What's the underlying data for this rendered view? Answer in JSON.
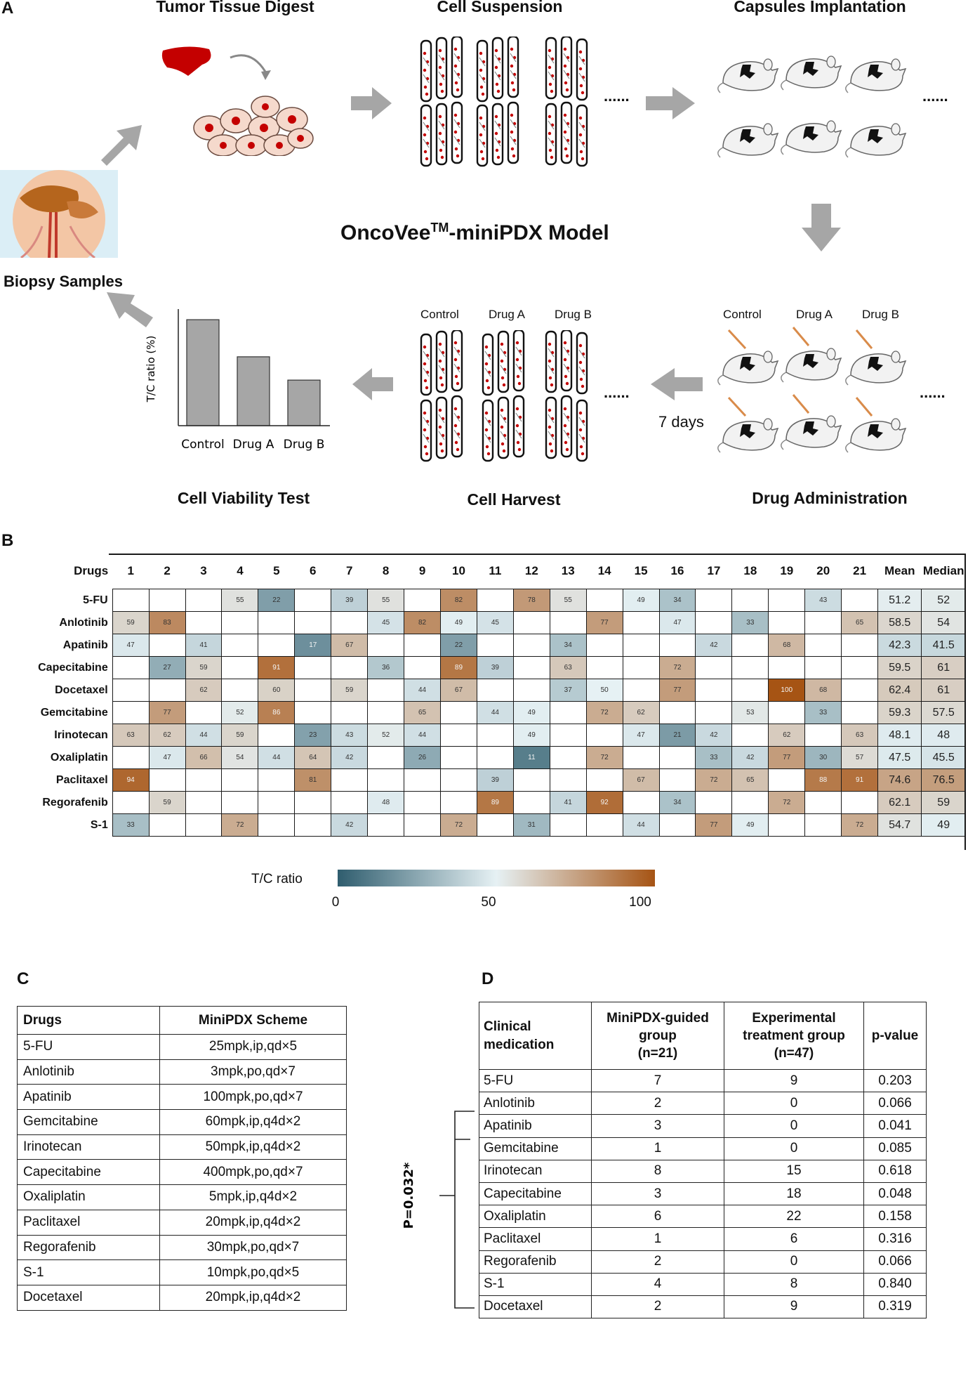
{
  "panelA": {
    "letter": "A",
    "model_title_main": "OncoVee",
    "model_title_sup": "TM",
    "model_title_rest": "-miniPDX Model",
    "steps": {
      "tumor_digest": "Tumor Tissue Digest",
      "cell_suspension": "Cell Suspension",
      "capsules": "Capsules Implantation",
      "biopsy": "Biopsy Samples",
      "viability": "Cell Viability  Test",
      "harvest": "Cell Harvest",
      "drug_admin": "Drug Administration"
    },
    "groups": [
      "Control",
      "Drug A",
      "Drug B"
    ],
    "dots": "......",
    "days": "7 days",
    "chart_data": {
      "type": "bar",
      "categories": [
        "Control",
        "Drug A",
        "Drug B"
      ],
      "values": [
        100,
        65,
        43
      ],
      "ylabel": "T/C ratio (%)",
      "ylim": [
        0,
        110
      ],
      "bar_color": "#a6a6a6"
    }
  },
  "panelB": {
    "letter": "B",
    "corner_label": "Drugs",
    "columns": [
      "1",
      "2",
      "3",
      "4",
      "5",
      "6",
      "7",
      "8",
      "9",
      "10",
      "11",
      "12",
      "13",
      "14",
      "15",
      "16",
      "17",
      "18",
      "19",
      "20",
      "21"
    ],
    "stat_headers": [
      "Mean",
      "Median"
    ],
    "rows": [
      {
        "drug": "5-FU",
        "cells": [
          null,
          null,
          null,
          55,
          22,
          null,
          39,
          55,
          null,
          82,
          null,
          78,
          55,
          null,
          49,
          34,
          null,
          null,
          null,
          43,
          null
        ],
        "mean": "51.2",
        "median": "52"
      },
      {
        "drug": "Anlotinib",
        "cells": [
          59,
          83,
          null,
          null,
          null,
          null,
          null,
          45,
          82,
          49,
          45,
          null,
          null,
          77,
          null,
          47,
          null,
          33,
          null,
          null,
          65
        ],
        "mean": "58.5",
        "median": "54"
      },
      {
        "drug": "Apatinib",
        "cells": [
          47,
          null,
          41,
          null,
          null,
          17,
          67,
          null,
          null,
          22,
          null,
          null,
          34,
          null,
          null,
          null,
          42,
          null,
          68,
          null,
          null
        ],
        "mean": "42.3",
        "median": "41.5"
      },
      {
        "drug": "Capecitabine",
        "cells": [
          null,
          27,
          59,
          null,
          91,
          null,
          null,
          36,
          null,
          89,
          39,
          null,
          63,
          null,
          null,
          72,
          null,
          null,
          null,
          null,
          null
        ],
        "mean": "59.5",
        "median": "61"
      },
      {
        "drug": "Docetaxel",
        "cells": [
          null,
          null,
          62,
          null,
          60,
          null,
          59,
          null,
          44,
          67,
          null,
          null,
          37,
          50,
          null,
          77,
          null,
          null,
          100,
          68,
          null
        ],
        "mean": "62.4",
        "median": "61"
      },
      {
        "drug": "Gemcitabine",
        "cells": [
          null,
          77,
          null,
          52,
          86,
          null,
          null,
          null,
          65,
          null,
          44,
          49,
          null,
          72,
          62,
          null,
          null,
          53,
          null,
          33,
          null
        ],
        "mean": "59.3",
        "median": "57.5"
      },
      {
        "drug": "Irinotecan",
        "cells": [
          63,
          62,
          44,
          59,
          null,
          23,
          43,
          52,
          44,
          null,
          null,
          49,
          null,
          null,
          47,
          21,
          42,
          null,
          62,
          null,
          63
        ],
        "mean": "48.1",
        "median": "48"
      },
      {
        "drug": "Oxaliplatin",
        "cells": [
          null,
          47,
          66,
          54,
          44,
          64,
          42,
          null,
          26,
          null,
          null,
          11,
          null,
          72,
          null,
          null,
          33,
          42,
          77,
          30,
          57
        ],
        "mean": "47.5",
        "median": "45.5"
      },
      {
        "drug": "Paclitaxel",
        "cells": [
          94,
          null,
          null,
          null,
          null,
          81,
          null,
          null,
          null,
          null,
          39,
          null,
          null,
          null,
          67,
          null,
          72,
          65,
          null,
          88,
          91
        ],
        "mean": "74.6",
        "median": "76.5"
      },
      {
        "drug": "Regorafenib",
        "cells": [
          null,
          59,
          null,
          null,
          null,
          null,
          null,
          48,
          null,
          null,
          89,
          null,
          41,
          92,
          null,
          34,
          null,
          null,
          72,
          null,
          null
        ],
        "mean": "62.1",
        "median": "59"
      },
      {
        "drug": "S-1",
        "cells": [
          33,
          null,
          null,
          72,
          null,
          null,
          42,
          null,
          null,
          72,
          null,
          31,
          null,
          null,
          44,
          null,
          77,
          49,
          null,
          null,
          72
        ],
        "mean": "54.7",
        "median": "49"
      }
    ],
    "legend": {
      "label": "T/C  ratio",
      "min": "0",
      "mid": "50",
      "max": "100",
      "color_low": "#2f5d6e",
      "color_mid": "#e6f1f4",
      "color_high": "#a65414"
    }
  },
  "panelC": {
    "letter": "C",
    "headers": [
      "Drugs",
      "MiniPDX Scheme"
    ],
    "rows": [
      [
        "5-FU",
        "25mpk,ip,qd×5"
      ],
      [
        "Anlotinib",
        "3mpk,po,qd×7"
      ],
      [
        "Apatinib",
        "100mpk,po,qd×7"
      ],
      [
        "Gemcitabine",
        "60mpk,ip,q4d×2"
      ],
      [
        "Irinotecan",
        "50mpk,ip,q4d×2"
      ],
      [
        "Capecitabine",
        "400mpk,po,qd×7"
      ],
      [
        "Oxaliplatin",
        "5mpk,ip,q4d×2"
      ],
      [
        "Paclitaxel",
        "20mpk,ip,q4d×2"
      ],
      [
        "Regorafenib",
        "30mpk,po,qd×7"
      ],
      [
        "S-1",
        "10mpk,po,qd×5"
      ],
      [
        "Docetaxel",
        "20mpk,ip,q4d×2"
      ]
    ]
  },
  "panelD": {
    "letter": "D",
    "headers": {
      "col1": [
        "Clinical",
        "medication"
      ],
      "col2": [
        "MiniPDX-guided",
        "group",
        "(n=21)"
      ],
      "col3": [
        "Experimental",
        "treatment group",
        "(n=47)"
      ],
      "col4": [
        "p-value"
      ]
    },
    "rows": [
      [
        "5-FU",
        "7",
        "9",
        "0.203"
      ],
      [
        "Anlotinib",
        "2",
        "0",
        "0.066"
      ],
      [
        "Apatinib",
        "3",
        "0",
        "0.041"
      ],
      [
        "Gemcitabine",
        "1",
        "0",
        "0.085"
      ],
      [
        "Irinotecan",
        "8",
        "15",
        "0.618"
      ],
      [
        "Capecitabine",
        "3",
        "18",
        "0.048"
      ],
      [
        "Oxaliplatin",
        "6",
        "22",
        "0.158"
      ],
      [
        "Paclitaxel",
        "1",
        "6",
        "0.316"
      ],
      [
        "Regorafenib",
        "2",
        "0",
        "0.066"
      ],
      [
        "S-1",
        "4",
        "8",
        "0.840"
      ],
      [
        "Docetaxel",
        "2",
        "9",
        "0.319"
      ]
    ],
    "bracket_label": "P=0.032*"
  }
}
